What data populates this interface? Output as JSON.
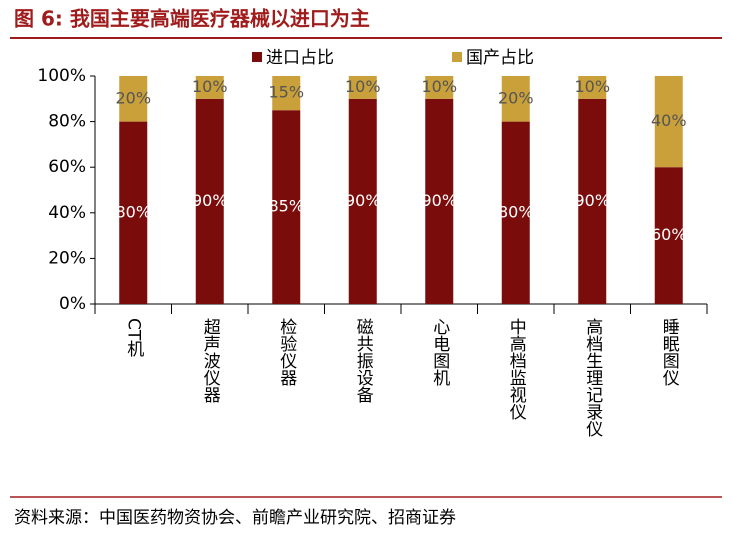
{
  "chart_data": {
    "type": "bar",
    "stacked": true,
    "title": "图 6:  我国主要高端医疗器械以进口为主",
    "source": "资料来源：中国医药物资协会、前瞻产业研究院、招商证券",
    "categories": [
      "CT机",
      "超声波仪器",
      "检验仪器",
      "磁共振设备",
      "心电图机",
      "中高档监视仪",
      "高档生理记录仪",
      "睡眠图仪"
    ],
    "series": [
      {
        "name": "进口占比",
        "color": "#7a0c0c",
        "values": [
          80,
          90,
          85,
          90,
          90,
          80,
          90,
          60
        ],
        "value_labels": [
          "80%",
          "90%",
          "85%",
          "90%",
          "90%",
          "80%",
          "90%",
          "60%"
        ]
      },
      {
        "name": "国产占比",
        "color": "#c9a03a",
        "values": [
          20,
          10,
          15,
          10,
          10,
          20,
          10,
          40
        ],
        "value_labels": [
          "20%",
          "10%",
          "15%",
          "10%",
          "10%",
          "20%",
          "10%",
          "40%"
        ]
      }
    ],
    "ylim": [
      0,
      100
    ],
    "yticks": [
      {
        "value": 0,
        "label": "0%"
      },
      {
        "value": 20,
        "label": "20%"
      },
      {
        "value": 40,
        "label": "40%"
      },
      {
        "value": 60,
        "label": "60%"
      },
      {
        "value": 80,
        "label": "80%"
      },
      {
        "value": 100,
        "label": "100%"
      }
    ],
    "legend": "top"
  }
}
